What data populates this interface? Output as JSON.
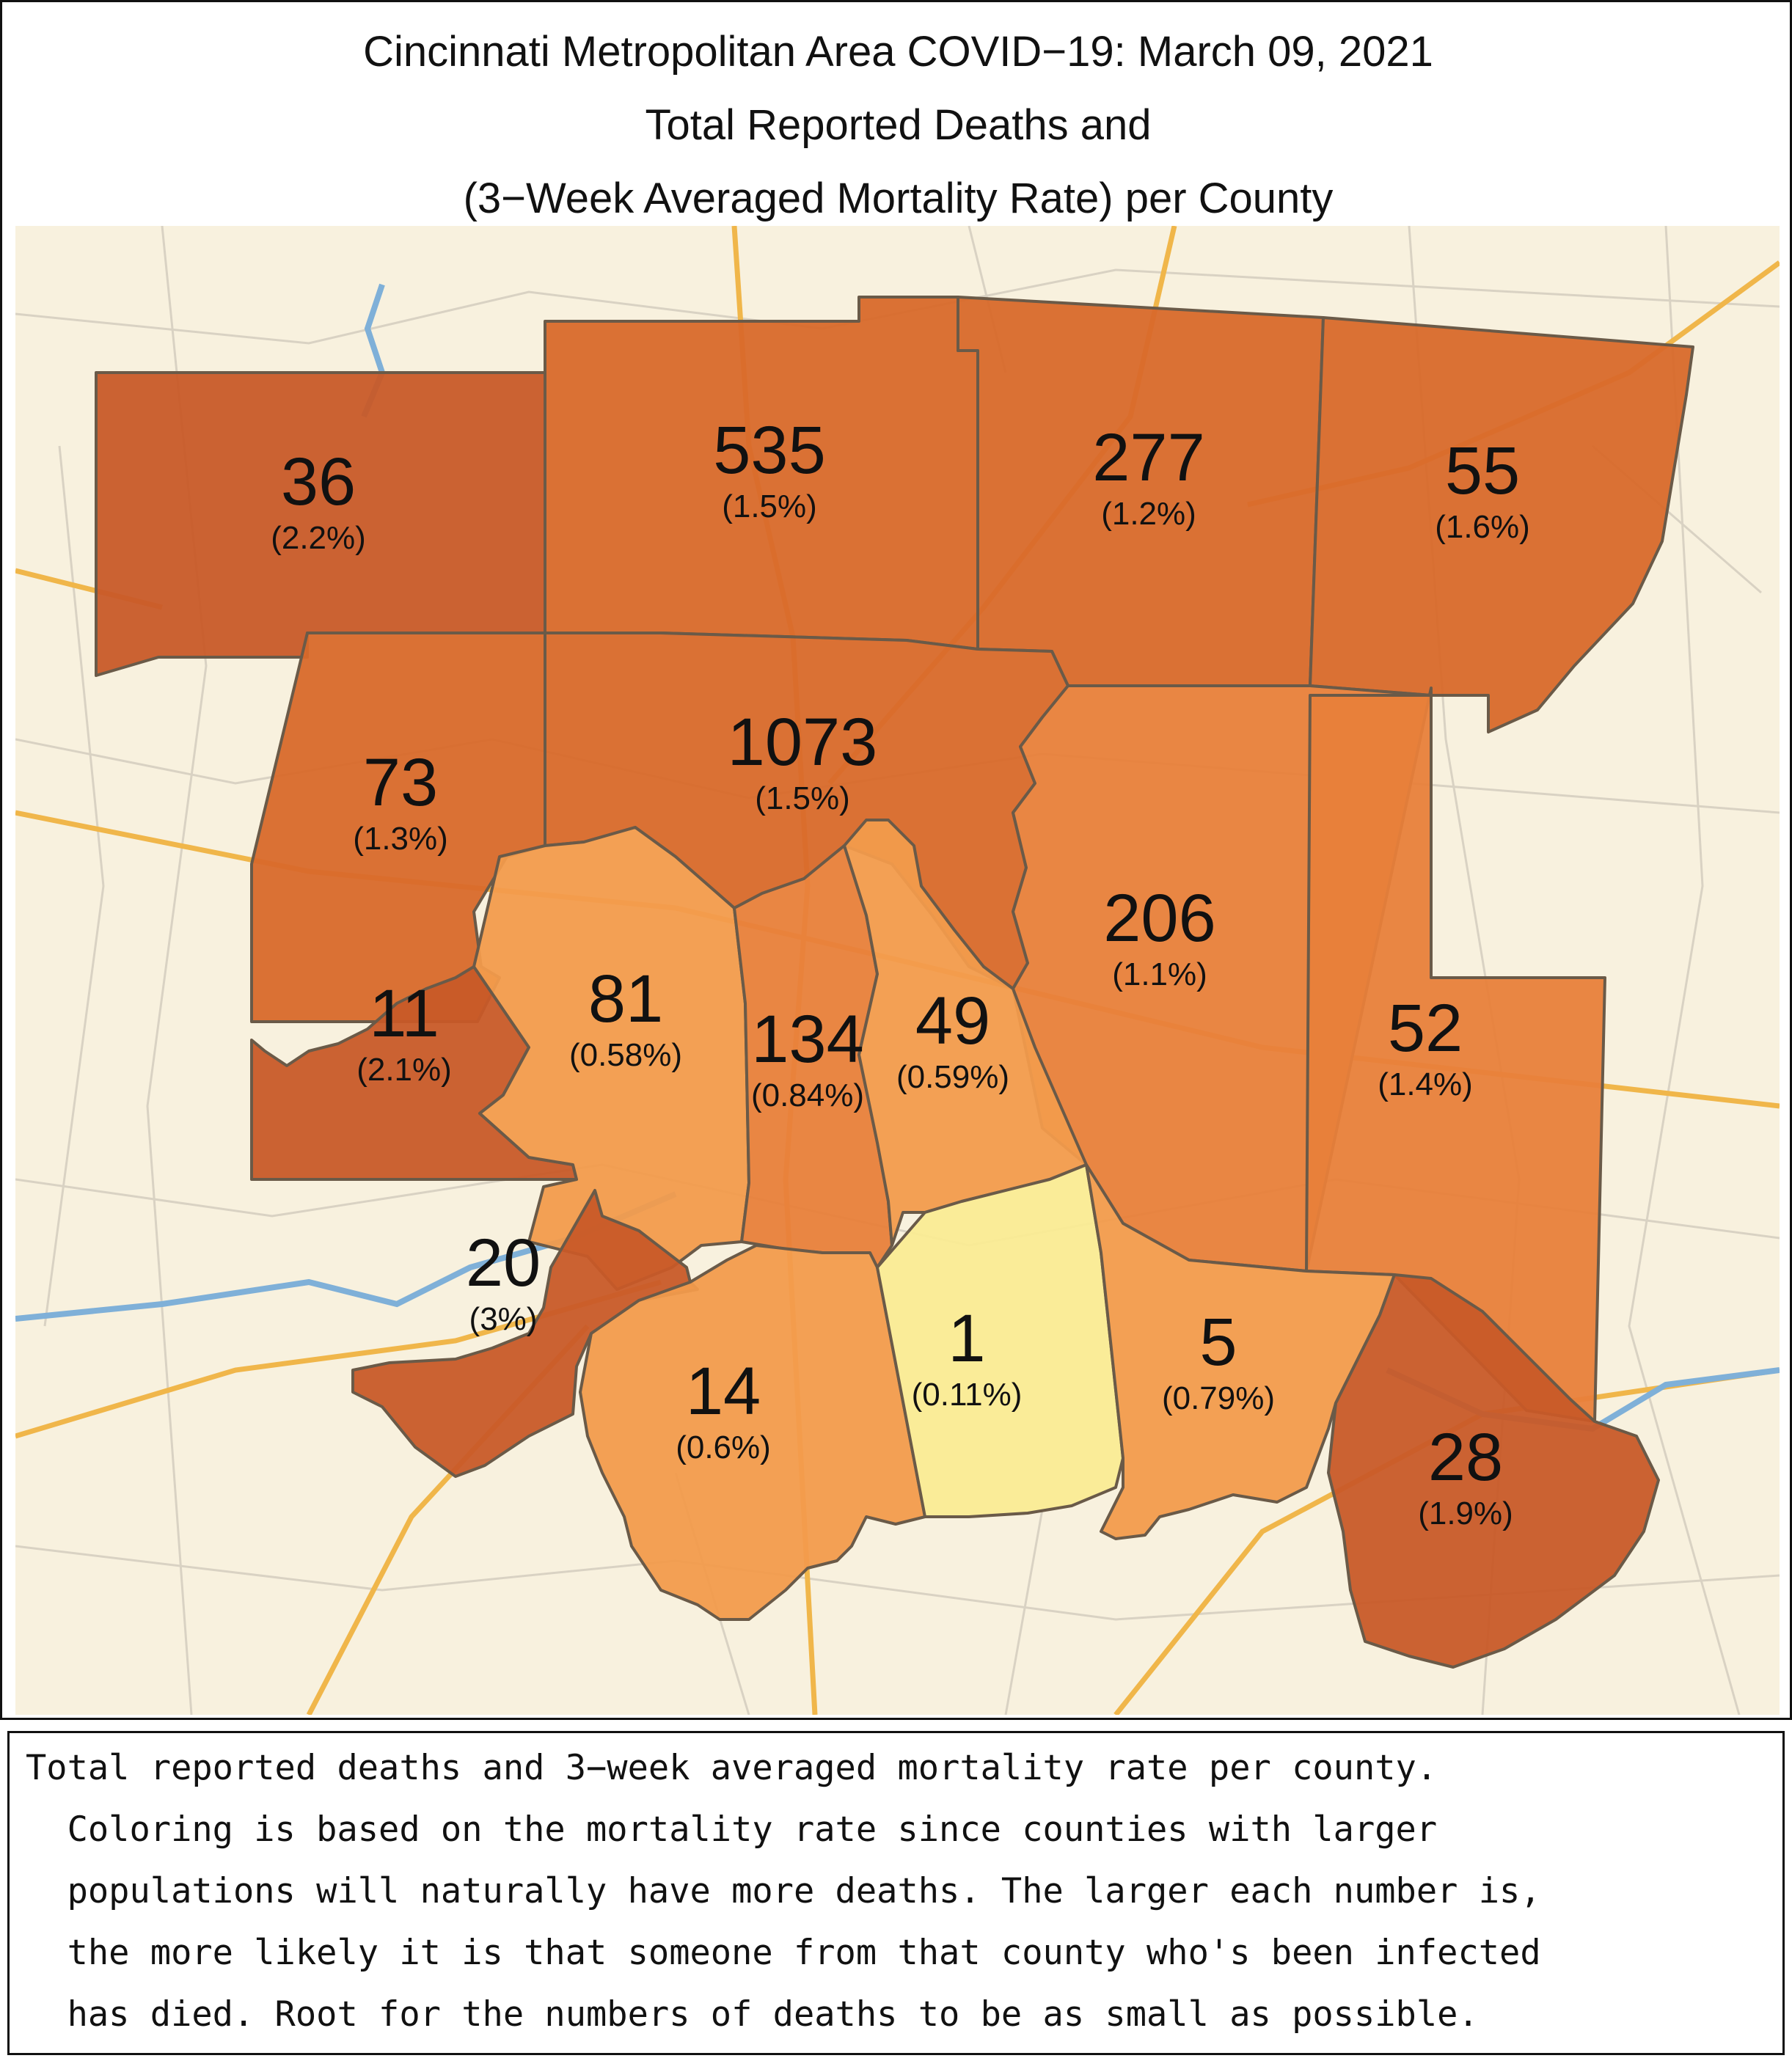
{
  "title": {
    "line1": "Cincinnati Metropolitan Area COVID−19: March 09, 2021",
    "line2": "Total Reported Deaths and",
    "line3": "(3−Week Averaged Mortality Rate) per County"
  },
  "colors": {
    "very_high": "#c85a28",
    "high": "#d8692a",
    "medium": "#e8803a",
    "light": "#f29b4c",
    "very_light": "#faeb93",
    "background": "#f8f1de",
    "highway": "#f0b64a",
    "river": "#7fb0d8"
  },
  "counties": [
    {
      "id": "nw",
      "deaths": "36",
      "rate": "(2.2%)",
      "color": "very_high"
    },
    {
      "id": "n1",
      "deaths": "535",
      "rate": "(1.5%)",
      "color": "high"
    },
    {
      "id": "n2",
      "deaths": "277",
      "rate": "(1.2%)",
      "color": "high"
    },
    {
      "id": "ne",
      "deaths": "55",
      "rate": "(1.6%)",
      "color": "high"
    },
    {
      "id": "w",
      "deaths": "73",
      "rate": "(1.3%)",
      "color": "high"
    },
    {
      "id": "center",
      "deaths": "1073",
      "rate": "(1.5%)",
      "color": "high"
    },
    {
      "id": "e1",
      "deaths": "206",
      "rate": "(1.1%)",
      "color": "medium"
    },
    {
      "id": "e2",
      "deaths": "52",
      "rate": "(1.4%)",
      "color": "medium"
    },
    {
      "id": "sw1",
      "deaths": "11",
      "rate": "(2.1%)",
      "color": "very_high"
    },
    {
      "id": "k1",
      "deaths": "81",
      "rate": "(0.58%)",
      "color": "light"
    },
    {
      "id": "k2",
      "deaths": "134",
      "rate": "(0.84%)",
      "color": "medium"
    },
    {
      "id": "k3",
      "deaths": "49",
      "rate": "(0.59%)",
      "color": "light"
    },
    {
      "id": "sw2",
      "deaths": "20",
      "rate": "(3%)",
      "color": "very_high"
    },
    {
      "id": "s1",
      "deaths": "14",
      "rate": "(0.6%)",
      "color": "light"
    },
    {
      "id": "s2",
      "deaths": "1",
      "rate": "(0.11%)",
      "color": "very_light"
    },
    {
      "id": "s3",
      "deaths": "5",
      "rate": "(0.79%)",
      "color": "light"
    },
    {
      "id": "se",
      "deaths": "28",
      "rate": "(1.9%)",
      "color": "very_high"
    }
  ],
  "caption": [
    "Total reported deaths and 3−week averaged mortality rate per county.",
    "  Coloring is based on the mortality rate since counties with larger",
    "  populations will naturally have more deaths. The larger each number is,",
    "  the more likely it is that someone from that county who's been infected",
    "  has died. Root for the numbers of deaths to be as small as possible."
  ]
}
